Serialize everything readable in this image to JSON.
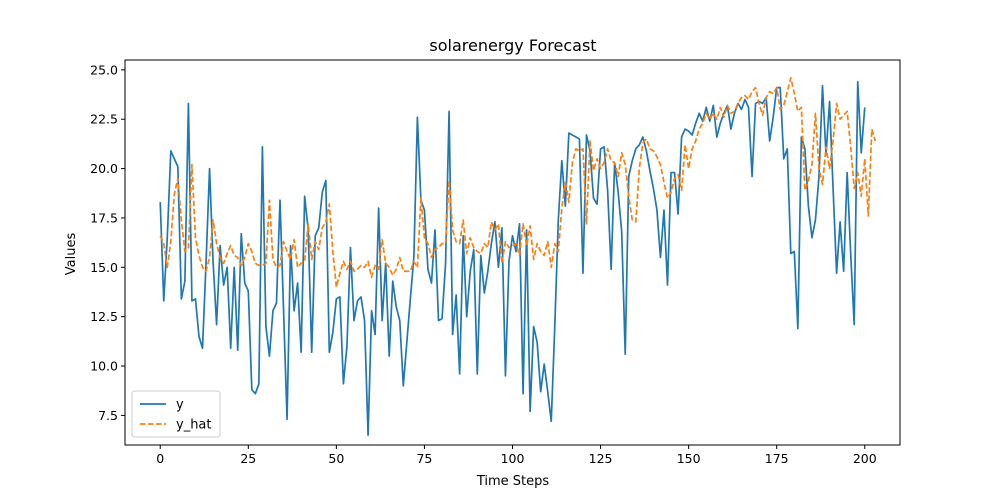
{
  "chart_data": {
    "type": "line",
    "title": "solarenergy Forecast",
    "xlabel": "Time Steps",
    "ylabel": "Values",
    "xlim": [
      -10,
      210
    ],
    "ylim": [
      6.0,
      25.5
    ],
    "xticks": [
      0,
      25,
      50,
      75,
      100,
      125,
      150,
      175,
      200
    ],
    "yticks": [
      7.5,
      10.0,
      12.5,
      15.0,
      17.5,
      20.0,
      22.5,
      25.0
    ],
    "grid": false,
    "legend_position": "lower-left",
    "series": [
      {
        "name": "y",
        "color": "#1f77b4",
        "style": "solid",
        "values": [
          18.3,
          13.3,
          16.5,
          20.9,
          20.5,
          20.1,
          13.4,
          14.3,
          23.3,
          13.3,
          13.4,
          11.5,
          10.9,
          15.2,
          20.0,
          15.3,
          12.1,
          16.1,
          14.1,
          15.0,
          10.9,
          15.0,
          10.8,
          16.7,
          14.2,
          13.8,
          8.8,
          8.6,
          9.1,
          21.1,
          12.0,
          10.5,
          12.8,
          13.2,
          18.4,
          12.9,
          7.3,
          16.1,
          12.8,
          14.2,
          10.7,
          18.6,
          16.9,
          10.7,
          16.6,
          17.0,
          18.8,
          19.4,
          10.7,
          11.7,
          13.4,
          13.5,
          9.1,
          11.0,
          16.0,
          12.3,
          13.3,
          13.5,
          12.3,
          6.5,
          12.8,
          11.6,
          18.0,
          12.3,
          15.2,
          10.5,
          14.3,
          13.0,
          12.3,
          9.0,
          11.2,
          13.4,
          15.5,
          22.6,
          18.4,
          17.9,
          14.9,
          14.2,
          16.9,
          12.3,
          12.4,
          15.2,
          22.9,
          11.6,
          13.6,
          9.6,
          16.6,
          12.5,
          14.8,
          15.9,
          9.6,
          15.6,
          13.7,
          14.8,
          16.2,
          17.3,
          15.0,
          17.0,
          9.5,
          15.3,
          16.6,
          15.8,
          17.2,
          8.6,
          16.9,
          7.7,
          12.0,
          11.2,
          8.7,
          10.1,
          8.7,
          7.2,
          12.0,
          17.4,
          20.4,
          18.1,
          21.8,
          21.7,
          21.6,
          21.5,
          14.7,
          21.7,
          20.9,
          18.5,
          18.2,
          21.0,
          21.1,
          18.9,
          14.9,
          20.3,
          18.8,
          16.8,
          10.6,
          19.6,
          20.4,
          21.0,
          21.2,
          21.6,
          20.9,
          19.9,
          19.0,
          17.9,
          15.5,
          17.9,
          14.1,
          19.8,
          19.8,
          17.7,
          21.6,
          22.0,
          21.9,
          21.7,
          22.3,
          22.8,
          22.4,
          23.1,
          22.4,
          23.2,
          21.6,
          22.3,
          22.8,
          23.2,
          22.0,
          22.8,
          23.3,
          23.0,
          23.5,
          23.1,
          19.6,
          23.3,
          23.4,
          23.3,
          23.6,
          21.4,
          22.6,
          24.1,
          24.1,
          20.5,
          21.0,
          15.7,
          15.8,
          11.9,
          21.6,
          21.0,
          18.1,
          16.5,
          17.4,
          19.6,
          24.2,
          20.7,
          23.4,
          19.0,
          14.7,
          17.3,
          14.8,
          19.8,
          15.7,
          12.1,
          24.4,
          20.8,
          23.1
        ]
      },
      {
        "name": "y_hat",
        "color": "#ff7f0e",
        "style": "dashed",
        "values": [
          16.6,
          16.2,
          15.0,
          16.3,
          18.7,
          19.5,
          17.4,
          15.8,
          16.0,
          20.2,
          16.5,
          15.6,
          15.0,
          14.8,
          15.5,
          17.4,
          16.2,
          15.5,
          15.2,
          15.7,
          16.1,
          15.6,
          15.5,
          15.1,
          15.5,
          16.2,
          15.8,
          15.2,
          15.1,
          15.1,
          15.2,
          18.4,
          15.4,
          15.0,
          15.1,
          16.3,
          15.8,
          15.4,
          16.4,
          15.0,
          15.2,
          15.3,
          17.2,
          15.4,
          16.3,
          15.9,
          17.0,
          17.3,
          18.2,
          15.8,
          14.0,
          14.7,
          15.3,
          14.9,
          15.3,
          14.8,
          14.9,
          15.1,
          15.0,
          15.3,
          14.5,
          15.1,
          14.9,
          16.4,
          15.2,
          15.0,
          14.6,
          14.9,
          15.5,
          14.8,
          14.8,
          14.8,
          15.3,
          15.0,
          18.5,
          16.5,
          16.2,
          15.5,
          15.9,
          16.0,
          16.2,
          16.2,
          19.4,
          16.9,
          16.3,
          16.2,
          17.4,
          15.7,
          16.5,
          16.0,
          15.8,
          15.7,
          16.2,
          16.0,
          17.3,
          16.9,
          17.2,
          15.2,
          16.3,
          16.0,
          16.1,
          16.2,
          15.6,
          17.2,
          16.1,
          17.1,
          15.4,
          16.2,
          15.8,
          15.6,
          16.3,
          15.0,
          16.2,
          15.8,
          18.0,
          19.3,
          18.3,
          20.3,
          21.0,
          20.9,
          21.0,
          17.2,
          21.4,
          19.9,
          20.5,
          20.0,
          20.3,
          21.0,
          20.4,
          20.3,
          19.6,
          20.8,
          20.2,
          18.6,
          17.4,
          17.3,
          20.0,
          21.3,
          21.5,
          21.0,
          20.9,
          20.6,
          20.2,
          19.3,
          18.5,
          18.8,
          19.5,
          19.7,
          18.9,
          21.2,
          20.0,
          21.0,
          21.4,
          22.0,
          22.3,
          22.8,
          22.5,
          22.8,
          22.5,
          23.1,
          22.6,
          23.2,
          22.8,
          22.9,
          23.3,
          23.6,
          23.7,
          23.5,
          23.9,
          24.1,
          23.3,
          22.7,
          23.6,
          23.9,
          23.8,
          24.1,
          23.0,
          23.2,
          23.9,
          24.6,
          23.8,
          22.9,
          23.1,
          18.9,
          19.4,
          20.2,
          22.8,
          20.0,
          19.2,
          21.1,
          20.0,
          21.4,
          23.3,
          22.5,
          22.7,
          22.9,
          21.1,
          19.0,
          19.8,
          18.6,
          20.5,
          17.6,
          22.0,
          21.4
        ]
      }
    ]
  }
}
